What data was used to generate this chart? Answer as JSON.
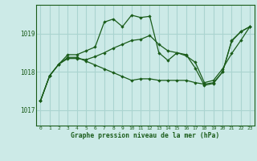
{
  "title": "Graphe pression niveau de la mer (hPa)",
  "bg_color": "#cceae7",
  "grid_color": "#aad4d0",
  "line_color": "#1a5c1a",
  "x_ticks": [
    0,
    1,
    2,
    3,
    4,
    5,
    6,
    7,
    8,
    9,
    10,
    11,
    12,
    13,
    14,
    15,
    16,
    17,
    18,
    19,
    20,
    21,
    22,
    23
  ],
  "y_ticks": [
    1017,
    1018,
    1019
  ],
  "ylim": [
    1016.6,
    1019.75
  ],
  "xlim": [
    -0.5,
    23.5
  ],
  "series": [
    [
      1017.25,
      1017.9,
      1018.2,
      1018.45,
      1018.45,
      1018.55,
      1018.65,
      1019.3,
      1019.38,
      1019.18,
      1019.48,
      1019.42,
      1019.45,
      1018.5,
      1018.3,
      1018.5,
      1018.45,
      1018.1,
      1017.65,
      1017.7,
      1018.0,
      1018.8,
      1019.05,
      1019.18
    ],
    [
      1017.25,
      1017.9,
      1018.2,
      1018.35,
      1018.35,
      1018.32,
      1018.4,
      1018.5,
      1018.62,
      1018.72,
      1018.82,
      1018.85,
      1018.95,
      1018.72,
      1018.55,
      1018.5,
      1018.42,
      1018.25,
      1017.72,
      1017.78,
      1018.08,
      1018.48,
      1018.82,
      1019.18
    ],
    [
      1017.25,
      1017.9,
      1018.2,
      1018.38,
      1018.38,
      1018.28,
      1018.18,
      1018.08,
      1017.98,
      1017.88,
      1017.78,
      1017.82,
      1017.82,
      1017.78,
      1017.78,
      1017.78,
      1017.78,
      1017.72,
      1017.68,
      1017.72,
      1018.0,
      1018.82,
      1019.05,
      1019.18
    ]
  ]
}
